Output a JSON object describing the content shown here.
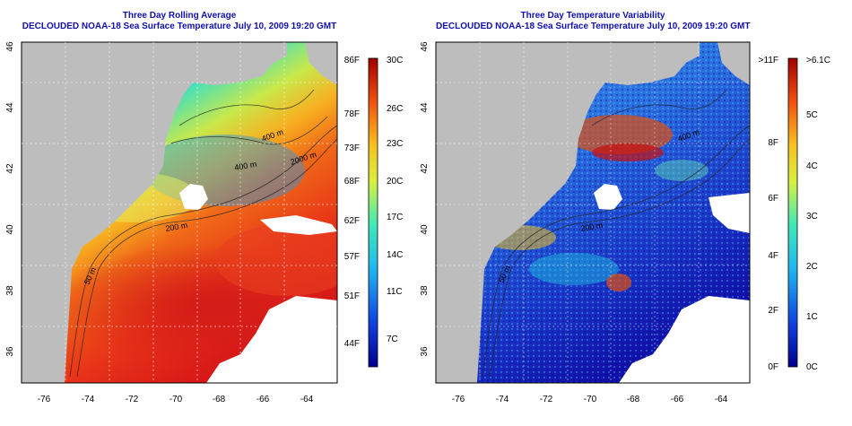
{
  "left_panel": {
    "title": "Three Day Rolling Average",
    "subtitle": "DECLOUDED NOAA-18 Sea Surface Temperature July 10, 2009 19:20 GMT",
    "x_ticks": [
      "-76",
      "-74",
      "-72",
      "-70",
      "-68",
      "-66",
      "-64"
    ],
    "y_ticks": [
      "46",
      "44",
      "42",
      "40",
      "38",
      "36"
    ],
    "contours": [
      "400 m",
      "400 m",
      "2000 m",
      "200 m",
      "50 m"
    ],
    "colorbar": {
      "left_labels": [
        "86F",
        "78F",
        "73F",
        "68F",
        "62F",
        "57F",
        "51F",
        "44F"
      ],
      "right_labels": [
        "30C",
        "26C",
        "23C",
        "20C",
        "17C",
        "14C",
        "11C",
        "7C"
      ]
    }
  },
  "right_panel": {
    "title": "Three Day Temperature Variability",
    "subtitle": "DECLOUDED NOAA-18 Sea Surface Temperature July 10, 2009 19:20 GMT",
    "x_ticks": [
      "-76",
      "-74",
      "-72",
      "-70",
      "-68",
      "-66",
      "-64"
    ],
    "y_ticks": [
      "46",
      "44",
      "42",
      "40",
      "38",
      "36"
    ],
    "contours": [
      "400 m",
      "200 m",
      "50 m"
    ],
    "colorbar": {
      "left_labels": [
        ">11F",
        "8F",
        "6F",
        "4F",
        "2F",
        "0F"
      ],
      "right_labels": [
        ">6.1C",
        "5C",
        "4C",
        "3C",
        "2C",
        "1C",
        "0C"
      ]
    }
  },
  "colors": {
    "land": "#bdbdbd",
    "title": "#1010b0",
    "background": "#ffffff"
  }
}
